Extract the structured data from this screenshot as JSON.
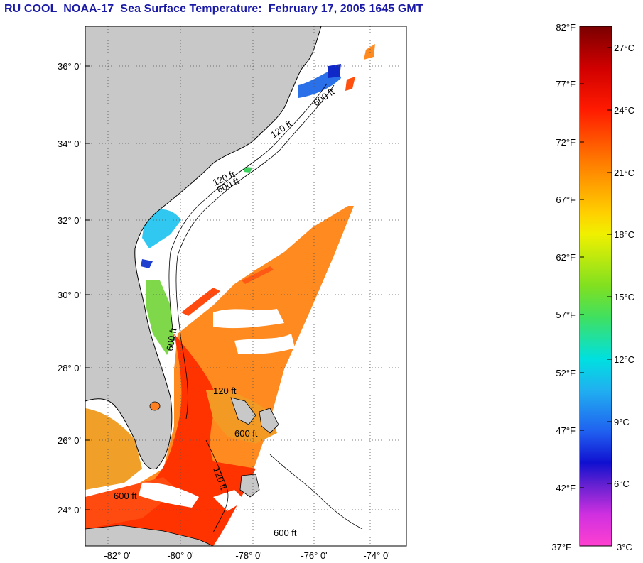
{
  "title": "RU COOL  NOAA-17  Sea Surface Temperature:  February 17, 2005 1645 GMT",
  "map": {
    "lat_labels": [
      "36° 0'",
      "34° 0'",
      "32° 0'",
      "30° 0'",
      "28° 0'",
      "26° 0'",
      "24° 0'"
    ],
    "lon_labels": [
      "-82° 0'",
      "-80° 0'",
      "-78° 0'",
      "-76° 0'",
      "-74° 0'"
    ],
    "isobath_labels": [
      "600 ft",
      "120 ft",
      "600 ft",
      "120 ft",
      "600 ft",
      "120 ft",
      "600 ft",
      "600 ft",
      "120 ft",
      "600 ft"
    ],
    "colors": {
      "land": "#c8c8c8",
      "water_bg": "#ffffff",
      "gulf_stream": "#ff3000",
      "warm": "#ff8020",
      "shelf_cool": "#20c0f0",
      "cold": "#2050e0"
    }
  },
  "colorbar": {
    "f_labels": [
      "82°F",
      "77°F",
      "72°F",
      "67°F",
      "62°F",
      "57°F",
      "52°F",
      "47°F",
      "42°F",
      "37°F"
    ],
    "c_labels": [
      "27°C",
      "24°C",
      "21°C",
      "18°C",
      "15°C",
      "12°C",
      "9°C",
      "6°C",
      "3°C"
    ],
    "range_f": [
      37,
      82
    ]
  }
}
